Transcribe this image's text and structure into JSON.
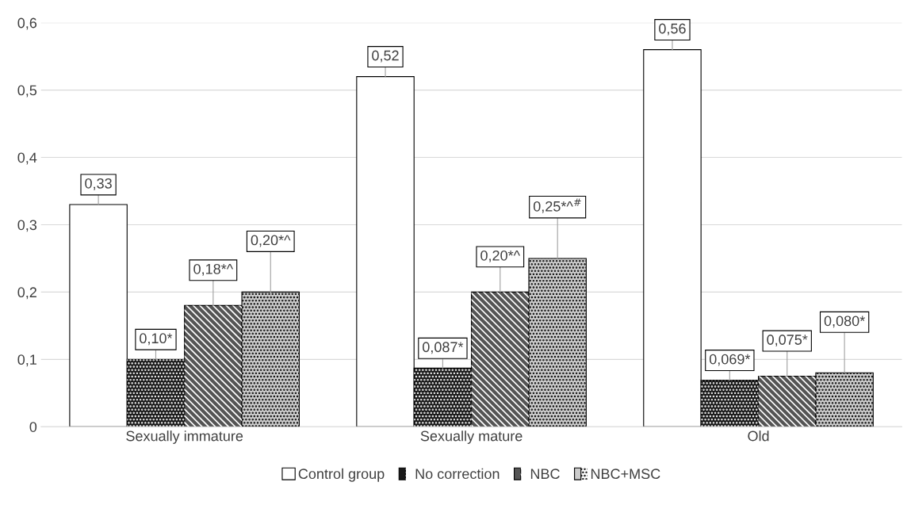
{
  "chart_data": {
    "type": "bar",
    "categories": [
      "Sexually immature",
      "Sexually mature",
      "Old"
    ],
    "series": [
      {
        "name": "Control group",
        "color": "#ffffff",
        "values": [
          0.33,
          0.52,
          0.56
        ],
        "value_labels": [
          "0,33",
          "0,52",
          "0,56"
        ]
      },
      {
        "name": "No correction",
        "color": "#1a1a1a",
        "values": [
          0.1,
          0.087,
          0.069
        ],
        "value_labels": [
          "0,10*",
          "0,087*",
          "0,069*"
        ]
      },
      {
        "name": "NBC",
        "color": "#555555",
        "values": [
          0.18,
          0.2,
          0.075
        ],
        "value_labels": [
          "0,18*^",
          "0,20*^",
          "0,075*"
        ]
      },
      {
        "name": "NBC+MSC",
        "color": "#cccccc",
        "values": [
          0.2,
          0.25,
          0.08
        ],
        "value_labels": [
          "0,20*^",
          "0,25*^$^{#}$",
          "0,080*"
        ]
      }
    ],
    "ylim": [
      0,
      0.6
    ],
    "yticks": [
      0,
      {
        "value": 0.1,
        "label": "0,1"
      },
      {
        "value": 0.2,
        "label": "0,2"
      },
      {
        "value": 0.3,
        "label": "0,3"
      },
      {
        "value": 0.4,
        "label": "0,4"
      },
      {
        "value": 0.5,
        "label": "0,5"
      },
      {
        "value": 0.6,
        "label": "0,6"
      }
    ],
    "grid": "y",
    "legend": "bottom"
  }
}
